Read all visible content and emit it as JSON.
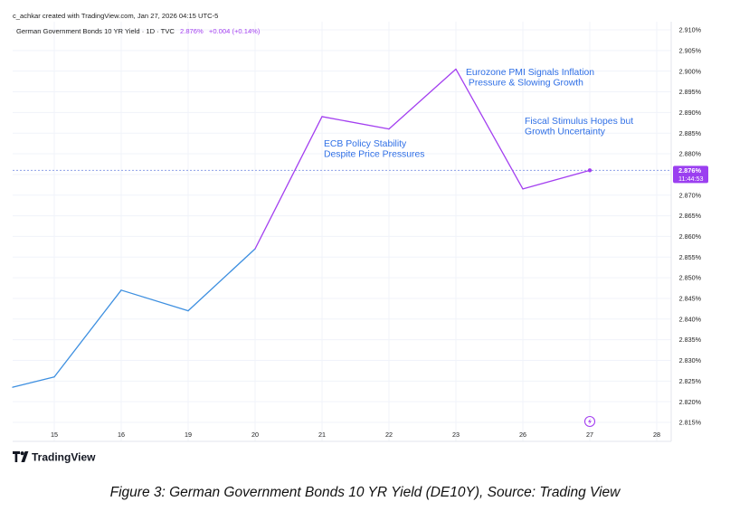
{
  "header": {
    "created_by": "c_achkar created with TradingView.com, Jan 27, 2026 04:15 UTC-5",
    "symbol_title": "German Government Bonds 10 YR Yield · 1D · TVC",
    "last_value": "2.876%",
    "change": "+0.004 (+0.14%)"
  },
  "price_tag": {
    "value": "2.876%",
    "countdown": "11:44:53"
  },
  "logo": {
    "text": "TradingView"
  },
  "caption": "Figure 3: German Government Bonds 10 YR Yield (DE10Y), Source: Trading View",
  "colors": {
    "line_blue": "#3d8fe0",
    "line_purple": "#a33ff0",
    "annotation_blue": "#2f6fe6",
    "price_line": "#8fa0e8",
    "tag_bg": "#9b3ff0"
  },
  "chart_data": {
    "type": "line",
    "x_tick_labels": [
      "15",
      "16",
      "19",
      "20",
      "21",
      "22",
      "23",
      "26",
      "27",
      "28"
    ],
    "y_tick_labels": [
      "2.910%",
      "2.905%",
      "2.900%",
      "2.895%",
      "2.890%",
      "2.885%",
      "2.880%",
      "2.875%",
      "2.870%",
      "2.865%",
      "2.860%",
      "2.855%",
      "2.850%",
      "2.845%",
      "2.840%",
      "2.835%",
      "2.830%",
      "2.825%",
      "2.820%",
      "2.815%"
    ],
    "ylim": [
      2.815,
      2.91
    ],
    "x": [
      "14",
      "15",
      "16",
      "19",
      "20",
      "21",
      "22",
      "23",
      "26",
      "27"
    ],
    "values": [
      2.8235,
      2.826,
      2.847,
      2.842,
      2.857,
      2.889,
      2.886,
      2.9005,
      2.8715,
      2.876
    ],
    "current_value": 2.876,
    "annotations": [
      {
        "lines": [
          "ECB Policy Stability",
          "Despite Price Pressures"
        ]
      },
      {
        "lines": [
          "Eurozone PMI Signals Inflation",
          " Pressure & Slowing Growth"
        ]
      },
      {
        "lines": [
          "Fiscal Stimulus Hopes but",
          "Growth Uncertainty"
        ]
      }
    ]
  }
}
